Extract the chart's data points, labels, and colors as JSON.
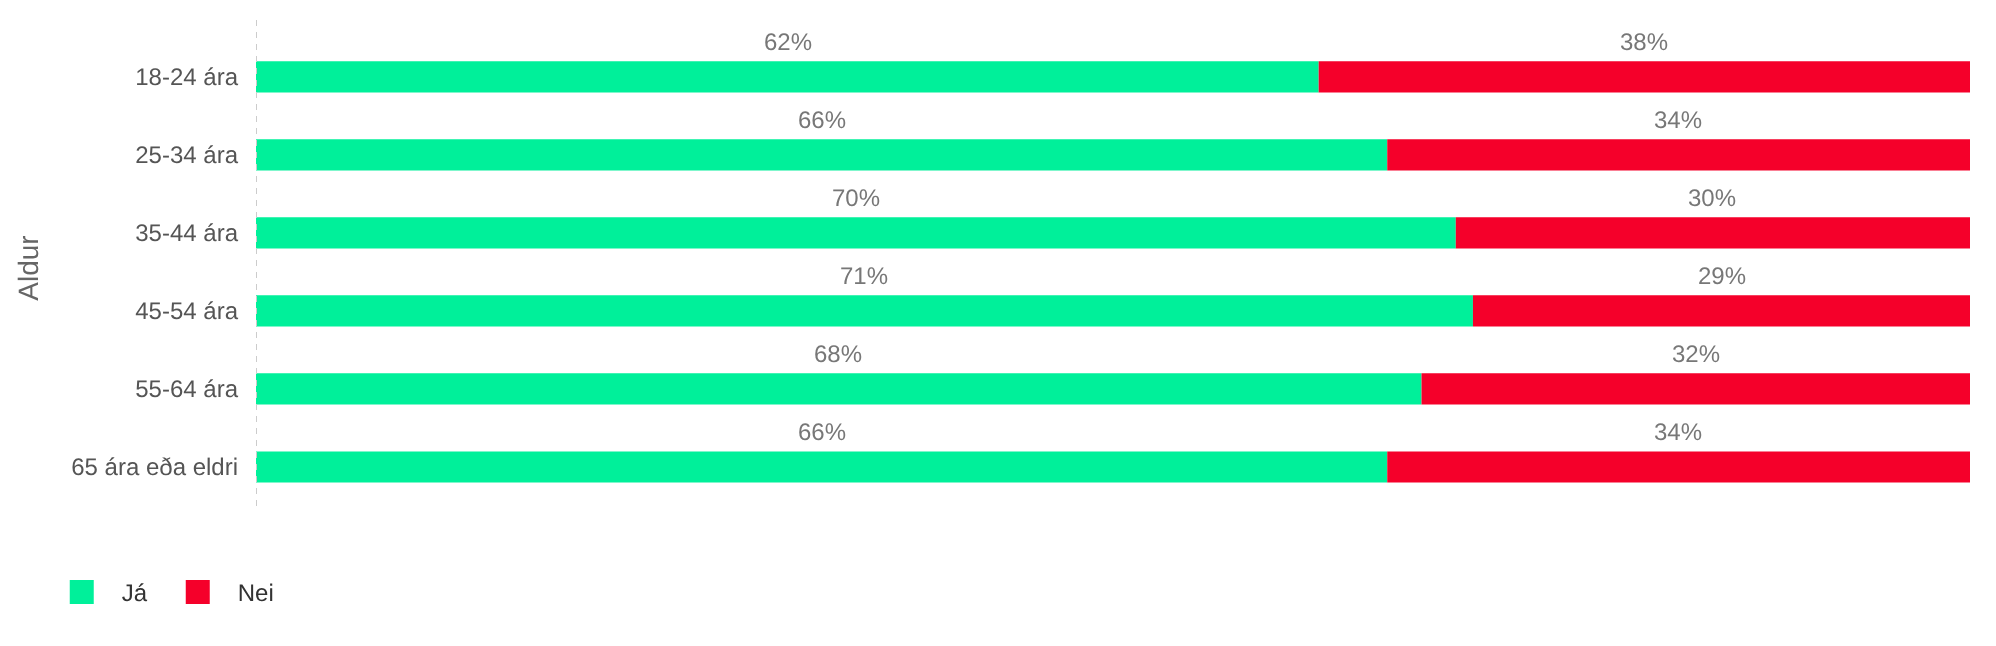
{
  "chart_data": {
    "type": "bar",
    "orientation": "horizontal",
    "stacked": true,
    "ylabel": "Aldur",
    "categories": [
      "18-24 ára",
      "25-34 ára",
      "35-44 ára",
      "45-54 ára",
      "55-64 ára",
      "65 ára eða eldri"
    ],
    "series": [
      {
        "name": "Já",
        "color": "#00f09a",
        "values": [
          62,
          66,
          70,
          71,
          68,
          66
        ],
        "value_labels": [
          "62%",
          "66%",
          "70%",
          "71%",
          "68%",
          "66%"
        ]
      },
      {
        "name": "Nei",
        "color": "#f5002a",
        "values": [
          38,
          34,
          30,
          29,
          32,
          34
        ],
        "value_labels": [
          "38%",
          "34%",
          "30%",
          "29%",
          "32%",
          "34%"
        ]
      }
    ],
    "legend": "bottom left"
  }
}
